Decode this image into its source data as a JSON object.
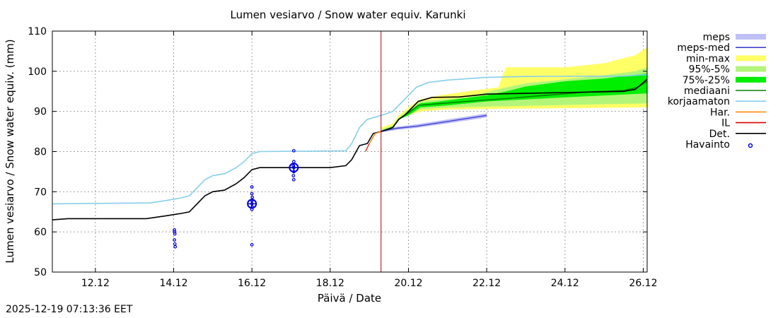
{
  "timestamp": "2025-12-19 07:13:36 EET",
  "colors": {
    "minmax": "#ffff66",
    "p95_5": "#b3f57a",
    "p75_25": "#00ee00",
    "mediaani": "#008000",
    "korjaamaton": "#87ceeb",
    "meps_band": "#c0c0f8",
    "meps_med": "#4040d0",
    "har": "#ff8c00",
    "il": "#dd0000",
    "det": "#000000",
    "havainto": "#0000dd",
    "grid": "#a0a0a0",
    "now_line": "#b00000"
  },
  "chart_data": {
    "type": "line",
    "title": "Lumen vesiarvo / Snow water equiv.  Karunki",
    "xlabel": "Päivä / Date",
    "ylabel": "Lumen vesiarvo / Snow water equiv. (mm)",
    "xlim": [
      10.9,
      26.1
    ],
    "ylim": [
      50,
      110
    ],
    "yticks": [
      50,
      60,
      70,
      80,
      90,
      100,
      110
    ],
    "xticks": [
      {
        "x": 12,
        "label": "12.12"
      },
      {
        "x": 14,
        "label": "14.12"
      },
      {
        "x": 16,
        "label": "16.12"
      },
      {
        "x": 18,
        "label": "18.12"
      },
      {
        "x": 20,
        "label": "20.12"
      },
      {
        "x": 22,
        "label": "22.12"
      },
      {
        "x": 24,
        "label": "24.12"
      },
      {
        "x": 26,
        "label": "26.12"
      }
    ],
    "now_x": 19.3,
    "grid": true,
    "legend": [
      {
        "key": "meps",
        "label": "meps",
        "style": "band"
      },
      {
        "key": "meps_med",
        "label": "meps-med",
        "style": "line"
      },
      {
        "key": "minmax",
        "label": "min-max",
        "style": "band"
      },
      {
        "key": "p95_5",
        "label": "95%-5%",
        "style": "band"
      },
      {
        "key": "p75_25",
        "label": "75%-25%",
        "style": "band"
      },
      {
        "key": "mediaani",
        "label": "mediaani",
        "style": "line"
      },
      {
        "key": "korjaamaton",
        "label": "korjaamaton",
        "style": "line"
      },
      {
        "key": "har",
        "label": "Har.",
        "style": "line"
      },
      {
        "key": "il",
        "label": "IL",
        "style": "line"
      },
      {
        "key": "det",
        "label": "Det.",
        "style": "line"
      },
      {
        "key": "havainto",
        "label": "Havainto",
        "style": "point"
      }
    ],
    "series": {
      "korjaamaton": [
        [
          10.9,
          67
        ],
        [
          13.4,
          67.2
        ],
        [
          13.8,
          67.8
        ],
        [
          14.2,
          68.5
        ],
        [
          14.4,
          69
        ],
        [
          14.6,
          71
        ],
        [
          14.8,
          73
        ],
        [
          15.0,
          74
        ],
        [
          15.3,
          74.5
        ],
        [
          15.6,
          76
        ],
        [
          15.8,
          77.5
        ],
        [
          16.0,
          79.5
        ],
        [
          16.2,
          80
        ],
        [
          18.4,
          80.2
        ],
        [
          18.55,
          82
        ],
        [
          18.75,
          86
        ],
        [
          18.95,
          88
        ],
        [
          19.3,
          89
        ],
        [
          19.6,
          90
        ],
        [
          19.8,
          92
        ],
        [
          20.0,
          94
        ],
        [
          20.2,
          96
        ],
        [
          20.5,
          97.2
        ],
        [
          21.0,
          97.8
        ],
        [
          22.0,
          98.5
        ],
        [
          23.0,
          98.7
        ],
        [
          25.5,
          98.8
        ],
        [
          26.1,
          99.2
        ]
      ],
      "det": [
        [
          10.9,
          63
        ],
        [
          11.3,
          63.3
        ],
        [
          13.3,
          63.3
        ],
        [
          13.8,
          64
        ],
        [
          14.2,
          64.6
        ],
        [
          14.4,
          65
        ],
        [
          14.6,
          67
        ],
        [
          14.8,
          69
        ],
        [
          15.0,
          70
        ],
        [
          15.3,
          70.4
        ],
        [
          15.6,
          72
        ],
        [
          15.8,
          73.5
        ],
        [
          16.0,
          75.5
        ],
        [
          16.2,
          76
        ],
        [
          18.0,
          76
        ],
        [
          18.4,
          76.5
        ],
        [
          18.55,
          78
        ],
        [
          18.75,
          81.5
        ],
        [
          18.95,
          82
        ],
        [
          19.1,
          84.5
        ],
        [
          19.3,
          85
        ]
      ],
      "mediaani": [
        [
          19.3,
          85
        ],
        [
          19.6,
          86
        ],
        [
          19.75,
          88
        ],
        [
          19.9,
          89
        ],
        [
          20.05,
          90
        ],
        [
          20.25,
          91.5
        ],
        [
          20.6,
          91.8
        ],
        [
          21.5,
          92.5
        ],
        [
          22.5,
          93.2
        ],
        [
          23.5,
          94
        ],
        [
          24.5,
          94.8
        ],
        [
          25.5,
          95.2
        ],
        [
          25.85,
          96
        ],
        [
          26.1,
          97.5
        ]
      ],
      "det_forecast": [
        [
          19.3,
          85
        ],
        [
          19.6,
          86
        ],
        [
          19.75,
          88
        ],
        [
          19.9,
          89
        ],
        [
          20.05,
          90.5
        ],
        [
          20.25,
          92.5
        ],
        [
          20.6,
          93.5
        ],
        [
          21.3,
          93.6
        ],
        [
          22.0,
          94.3
        ],
        [
          24.0,
          94.7
        ],
        [
          25.5,
          95
        ],
        [
          25.8,
          95.5
        ],
        [
          26.1,
          98
        ]
      ],
      "meps_med": [
        [
          19.3,
          85
        ],
        [
          19.7,
          85.8
        ],
        [
          20.2,
          86.3
        ],
        [
          21.0,
          87.5
        ],
        [
          22.0,
          89
        ]
      ],
      "il": [
        [
          18.9,
          80
        ],
        [
          19.0,
          82
        ],
        [
          19.15,
          84.5
        ],
        [
          19.3,
          85
        ]
      ],
      "har": [
        [
          19.0,
          82
        ],
        [
          19.15,
          84.5
        ],
        [
          19.3,
          85
        ]
      ]
    },
    "bands": {
      "minmax": {
        "upper": [
          [
            19.3,
            86
          ],
          [
            19.6,
            87
          ],
          [
            19.75,
            89
          ],
          [
            20.0,
            91
          ],
          [
            20.3,
            93
          ],
          [
            20.8,
            94
          ],
          [
            21.5,
            95
          ],
          [
            22.3,
            96
          ],
          [
            22.4,
            99
          ],
          [
            22.5,
            101
          ],
          [
            23.0,
            101
          ],
          [
            24.0,
            101
          ],
          [
            25.0,
            102
          ],
          [
            25.8,
            104
          ],
          [
            26.1,
            106
          ]
        ],
        "lower": [
          [
            19.3,
            85
          ],
          [
            19.6,
            86
          ],
          [
            19.75,
            88
          ],
          [
            20.0,
            89
          ],
          [
            20.3,
            90
          ],
          [
            21.0,
            90.5
          ],
          [
            26.1,
            91
          ]
        ]
      },
      "p95_5": {
        "upper": [
          [
            19.3,
            85.5
          ],
          [
            19.6,
            86.5
          ],
          [
            19.75,
            88.5
          ],
          [
            20.0,
            90.5
          ],
          [
            20.3,
            92.5
          ],
          [
            20.8,
            93
          ],
          [
            21.5,
            93.5
          ],
          [
            22.5,
            96
          ],
          [
            23.0,
            97
          ],
          [
            24.0,
            98
          ],
          [
            25.0,
            99
          ],
          [
            25.8,
            100
          ],
          [
            26.1,
            101
          ]
        ],
        "lower": [
          [
            19.3,
            85
          ],
          [
            19.6,
            86
          ],
          [
            19.75,
            88
          ],
          [
            20.0,
            89
          ],
          [
            20.3,
            90.5
          ],
          [
            21.0,
            91
          ],
          [
            26.1,
            92
          ]
        ]
      },
      "p75_25": {
        "upper": [
          [
            19.3,
            85.2
          ],
          [
            19.6,
            86.2
          ],
          [
            19.75,
            88.2
          ],
          [
            20.0,
            90
          ],
          [
            20.3,
            92
          ],
          [
            20.8,
            92.5
          ],
          [
            22.0,
            94
          ],
          [
            22.5,
            95
          ],
          [
            23.0,
            96.2
          ],
          [
            24.0,
            97.5
          ],
          [
            25.0,
            98.2
          ],
          [
            26.1,
            99.5
          ]
        ],
        "lower": [
          [
            19.3,
            85
          ],
          [
            19.6,
            86
          ],
          [
            19.75,
            88
          ],
          [
            20.0,
            89
          ],
          [
            20.3,
            91
          ],
          [
            21.0,
            91.5
          ],
          [
            22.0,
            92.5
          ],
          [
            24.0,
            93.5
          ],
          [
            26.1,
            94.5
          ]
        ]
      },
      "meps": {
        "upper": [
          [
            19.3,
            85.3
          ],
          [
            19.7,
            86.2
          ],
          [
            20.2,
            86.8
          ],
          [
            21.0,
            88
          ],
          [
            22.0,
            89.5
          ]
        ],
        "lower": [
          [
            19.3,
            84.8
          ],
          [
            19.7,
            85.4
          ],
          [
            20.2,
            85.9
          ],
          [
            21.0,
            87
          ],
          [
            22.0,
            88.5
          ]
        ]
      }
    },
    "observations": [
      {
        "x": 14.02,
        "y": 60.5
      },
      {
        "x": 14.02,
        "y": 60
      },
      {
        "x": 14.03,
        "y": 59.5
      },
      {
        "x": 14.02,
        "y": 58
      },
      {
        "x": 14.03,
        "y": 57
      },
      {
        "x": 14.04,
        "y": 56.3
      },
      {
        "x": 16.0,
        "y": 71.2
      },
      {
        "x": 16.0,
        "y": 69.5
      },
      {
        "x": 16.01,
        "y": 68.6
      },
      {
        "x": 16.0,
        "y": 67.8
      },
      {
        "x": 16.0,
        "y": 67
      },
      {
        "x": 16.01,
        "y": 66.2
      },
      {
        "x": 16.0,
        "y": 65.6
      },
      {
        "x": 16.0,
        "y": 56.8
      },
      {
        "x": 17.07,
        "y": 80.2
      },
      {
        "x": 17.07,
        "y": 77.5
      },
      {
        "x": 17.06,
        "y": 76.5
      },
      {
        "x": 17.07,
        "y": 76
      },
      {
        "x": 17.07,
        "y": 75
      },
      {
        "x": 17.06,
        "y": 74
      },
      {
        "x": 17.07,
        "y": 73
      }
    ],
    "observations_large": [
      {
        "x": 16.0,
        "y": 67
      },
      {
        "x": 17.07,
        "y": 76
      }
    ]
  }
}
